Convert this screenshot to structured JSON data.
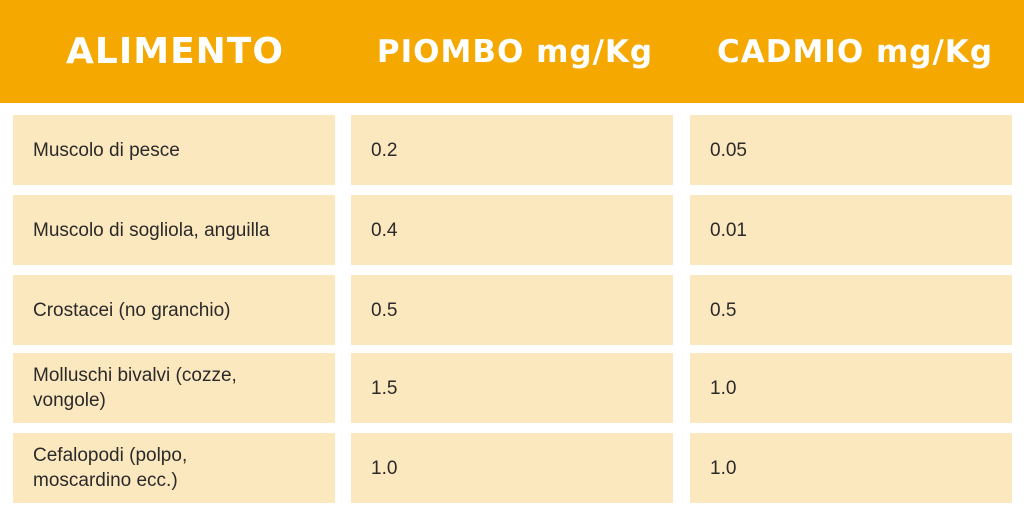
{
  "table": {
    "header": [
      "ALIMENTO",
      "PIOMBO mg/Kg",
      "CADMIO mg/Kg"
    ],
    "rows": [
      [
        "Muscolo di pesce",
        "0.2",
        "0.05"
      ],
      [
        "Muscolo di sogliola, anguilla",
        "0.4",
        "0.01"
      ],
      [
        "Crostacei (no granchio)",
        "0.5",
        "0.5"
      ],
      [
        "Molluschi bivalvi (cozze, vongole)",
        "1.5",
        "1.0"
      ],
      [
        "Cefalopodi (polpo, moscardino ecc.)",
        "1.0",
        "1.0"
      ]
    ]
  }
}
